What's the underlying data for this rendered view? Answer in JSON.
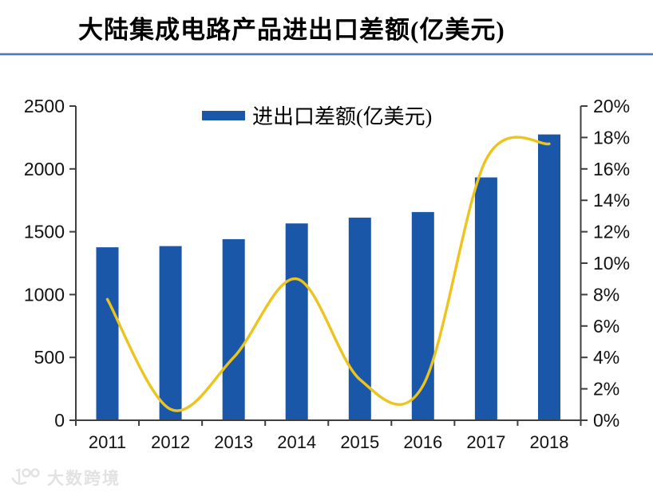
{
  "page": {
    "title": "大陆集成电路产品进出口差额(亿美元)",
    "watermark": "大数跨境"
  },
  "chart_data": {
    "type": "combo_bar_line",
    "title": "大陆集成电路产品进出口差额(亿美元)",
    "categories": [
      "2011",
      "2012",
      "2013",
      "2014",
      "2015",
      "2016",
      "2017",
      "2018"
    ],
    "series": [
      {
        "name": "进出口差额(亿美元)",
        "type": "bar",
        "axis": "left",
        "color": "#1b57a8",
        "values": [
          1376,
          1386,
          1441,
          1566,
          1612,
          1657,
          1932,
          2274
        ]
      },
      {
        "name": "",
        "type": "line",
        "axis": "right",
        "color": "#edc41d",
        "smooth": true,
        "values": [
          7.7,
          0.7,
          4.0,
          9.0,
          2.6,
          2.2,
          16.6,
          17.6
        ]
      }
    ],
    "left_axis": {
      "min": 0,
      "max": 2500,
      "step": 500,
      "tick_labels": [
        "0",
        "500",
        "1000",
        "1500",
        "2000",
        "2500"
      ]
    },
    "right_axis": {
      "min": 0,
      "max": 20,
      "step": 2,
      "unit": "%",
      "tick_labels": [
        "0%",
        "2%",
        "4%",
        "6%",
        "8%",
        "10%",
        "12%",
        "14%",
        "16%",
        "18%",
        "20%"
      ]
    },
    "legend_position": "top-center",
    "grid": false,
    "axis_color": "#3f3f3f"
  }
}
